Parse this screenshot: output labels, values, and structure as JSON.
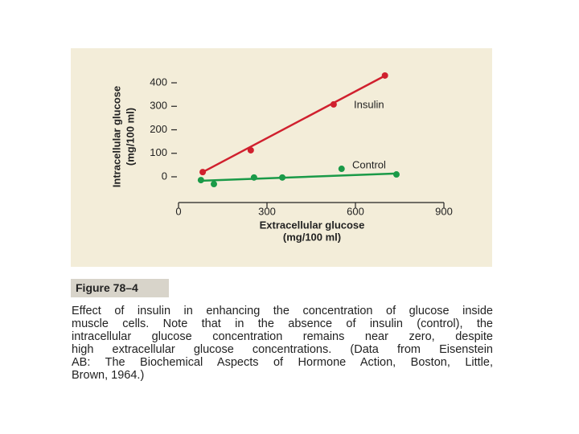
{
  "chart_data": {
    "type": "scatter",
    "ylabel": [
      "Intracellular glucose",
      "(mg/100 ml)"
    ],
    "xlabel": [
      "Extracellular glucose",
      "(mg/100 ml)"
    ],
    "xlim": [
      0,
      900
    ],
    "xticks": [
      0,
      300,
      600,
      900
    ],
    "ylim": [
      -50,
      450
    ],
    "yticks": [
      0,
      100,
      200,
      300,
      400
    ],
    "series": [
      {
        "name": "Insulin",
        "color": "#d0202e",
        "x": [
          82,
          245,
          526,
          700
        ],
        "values": [
          20,
          113,
          308,
          431
        ],
        "trend": {
          "x": [
            82,
            700
          ],
          "y": [
            20,
            430
          ]
        }
      },
      {
        "name": "Control",
        "color": "#1a9a48",
        "x": [
          76,
          120,
          256,
          352,
          553,
          739
        ],
        "values": [
          -14,
          -31,
          -3,
          -3,
          34,
          10
        ],
        "trend": {
          "x": [
            76,
            739
          ],
          "y": [
            -17,
            14
          ]
        }
      }
    ]
  },
  "figure_label": "Figure 78–4",
  "caption": [
    "Effect of insulin in enhancing the concentration of glucose inside",
    "muscle cells. Note that in the absence of insulin (control), the",
    "intracellular glucose concentration remains near zero, despite",
    "high extracellular glucose concentrations. (Data from Eisenstein",
    "AB: The Biochemical Aspects of Hormone Action, Boston, Little,",
    "Brown, 1964.)"
  ]
}
